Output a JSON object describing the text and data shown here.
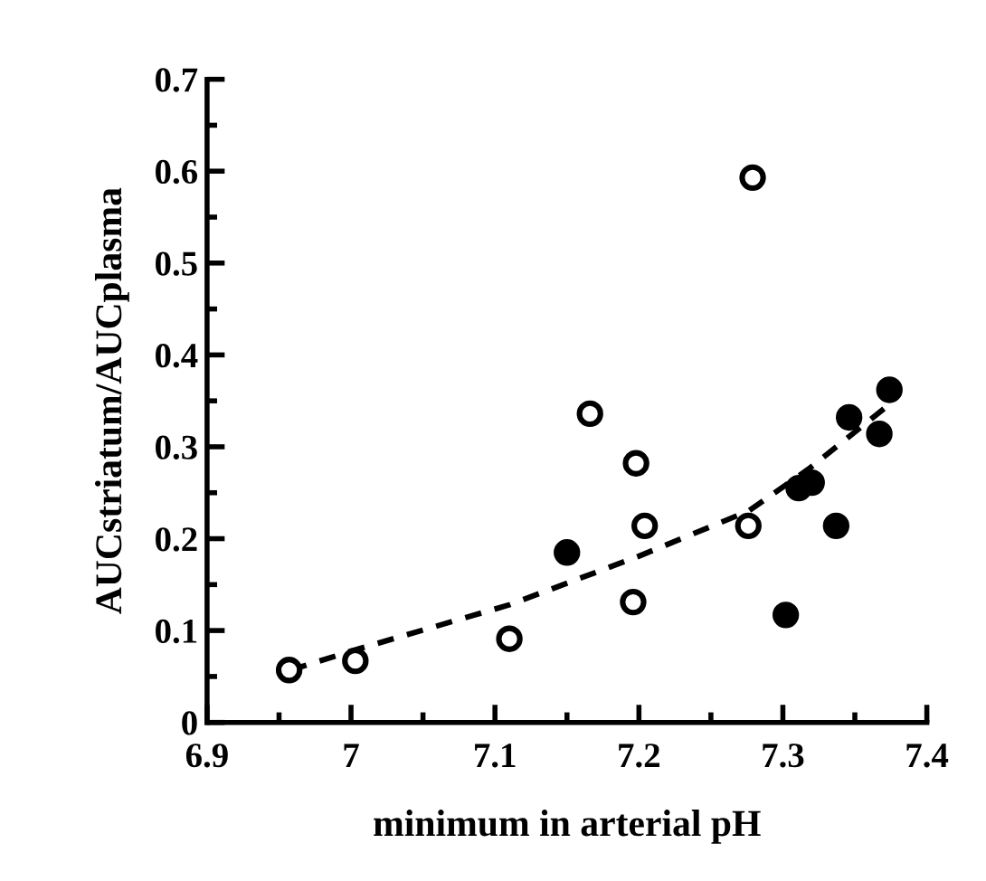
{
  "chart_data": {
    "type": "scatter",
    "xlabel": "minimum in arterial pH",
    "ylabel": "AUCstriatum/AUCplasma",
    "xlim": [
      6.9,
      7.4
    ],
    "xticks": [
      6.9,
      7,
      7.1,
      7.2,
      7.3,
      7.4
    ],
    "ylim": [
      0,
      0.7
    ],
    "yticks": [
      0,
      0.1,
      0.2,
      0.3,
      0.4,
      0.5,
      0.6,
      0.7
    ],
    "grid": false,
    "marker": "circle",
    "series": [
      {
        "color": "#ffffff",
        "x": [
          6.957,
          7.003,
          7.11,
          7.166,
          7.196,
          7.198,
          7.204,
          7.279,
          7.276
        ],
        "values": [
          0.057,
          0.067,
          0.091,
          0.336,
          0.131,
          0.282,
          0.214,
          0.593,
          0.214
        ]
      },
      {
        "color": "#000000",
        "x": [
          7.15,
          7.302,
          7.311,
          7.32,
          7.337,
          7.346,
          7.367,
          7.374
        ],
        "values": [
          0.185,
          0.117,
          0.255,
          0.261,
          0.214,
          0.332,
          0.314,
          0.362
        ]
      },
      {
        "type": "line",
        "color": "#000000",
        "line_style": "dashed",
        "marker": "none",
        "x": [
          6.958,
          7.003,
          7.11,
          7.2,
          7.276,
          7.318,
          7.373
        ],
        "values": [
          0.057,
          0.079,
          0.128,
          0.181,
          0.23,
          0.276,
          0.345
        ]
      }
    ]
  }
}
